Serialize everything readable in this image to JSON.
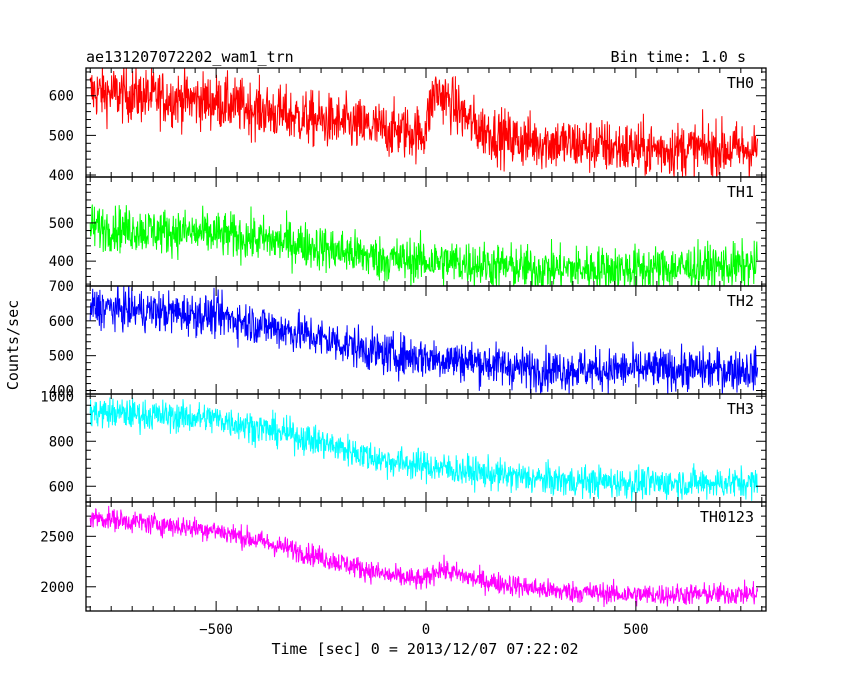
{
  "title_left": "ae131207072202_wam1_trn",
  "title_right": "Bin time: 1.0 s",
  "xlabel": "Time [sec] 0 = 2013/12/07 07:22:02",
  "ylabel": "Counts/sec",
  "chart_data": {
    "type": "line",
    "x_range": [
      -810,
      810
    ],
    "x_ticks": [
      -500,
      0,
      500
    ],
    "x_tick_labels": [
      "−500",
      "0",
      "500"
    ],
    "panels": [
      {
        "name": "TH0",
        "color": "#ff0000",
        "ylim": [
          395,
          670
        ],
        "yticks": [
          400,
          500,
          600
        ],
        "noise": 35,
        "trend": [
          [
            -800,
            610
          ],
          [
            -500,
            585
          ],
          [
            -300,
            545
          ],
          [
            -100,
            515
          ],
          [
            -5,
            505
          ],
          [
            20,
            610
          ],
          [
            40,
            600
          ],
          [
            120,
            520
          ],
          [
            200,
            490
          ],
          [
            500,
            465
          ],
          [
            790,
            465
          ]
        ]
      },
      {
        "name": "TH1",
        "color": "#00ff00",
        "ylim": [
          335,
          620
        ],
        "yticks": [
          400,
          500
        ],
        "noise": 30,
        "trend": [
          [
            -800,
            490
          ],
          [
            -500,
            470
          ],
          [
            -300,
            445
          ],
          [
            -100,
            405
          ],
          [
            100,
            395
          ],
          [
            250,
            380
          ],
          [
            500,
            380
          ],
          [
            790,
            388
          ]
        ]
      },
      {
        "name": "TH2",
        "color": "#0000ff",
        "ylim": [
          390,
          700
        ],
        "yticks": [
          400,
          500,
          600,
          700
        ],
        "noise": 30,
        "trend": [
          [
            -800,
            640
          ],
          [
            -500,
            615
          ],
          [
            -300,
            565
          ],
          [
            -100,
            505
          ],
          [
            100,
            485
          ],
          [
            250,
            460
          ],
          [
            500,
            460
          ],
          [
            790,
            460
          ]
        ]
      },
      {
        "name": "TH3",
        "color": "#00ffff",
        "ylim": [
          530,
          1010
        ],
        "yticks": [
          600,
          800,
          1000
        ],
        "noise": 35,
        "trend": [
          [
            -800,
            930
          ],
          [
            -500,
            900
          ],
          [
            -300,
            820
          ],
          [
            -100,
            715
          ],
          [
            100,
            665
          ],
          [
            300,
            625
          ],
          [
            500,
            615
          ],
          [
            790,
            615
          ]
        ]
      },
      {
        "name": "TH0123",
        "color": "#ff00ff",
        "ylim": [
          1760,
          2840
        ],
        "yticks": [
          2000,
          2500
        ],
        "noise": 55,
        "trend": [
          [
            -800,
            2690
          ],
          [
            -500,
            2560
          ],
          [
            -300,
            2350
          ],
          [
            -100,
            2120
          ],
          [
            -5,
            2060
          ],
          [
            30,
            2180
          ],
          [
            120,
            2070
          ],
          [
            300,
            1960
          ],
          [
            500,
            1920
          ],
          [
            790,
            1930
          ]
        ]
      }
    ]
  }
}
